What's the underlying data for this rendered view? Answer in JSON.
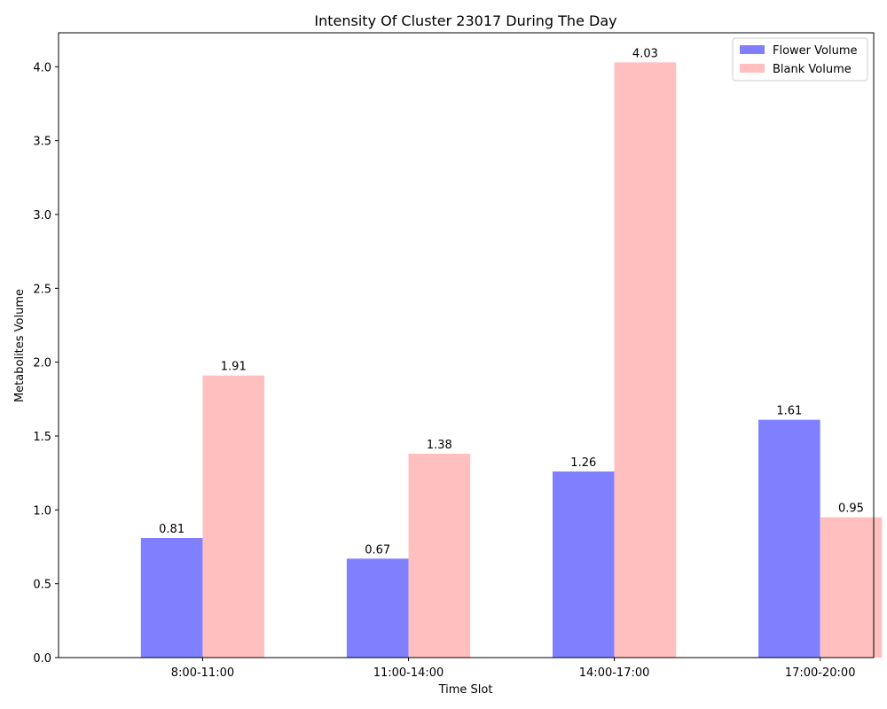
{
  "chart_data": {
    "type": "bar",
    "title": "Intensity Of Cluster 23017 During The Day",
    "xlabel": "Time Slot",
    "ylabel": "Metabolites Volume",
    "categories": [
      "8:00-11:00",
      "11:00-14:00",
      "14:00-17:00",
      "17:00-20:00"
    ],
    "series": [
      {
        "name": "Flower Volume",
        "values": [
          0.81,
          0.67,
          1.26,
          1.61
        ],
        "labels": [
          "0.81",
          "0.67",
          "1.26",
          "1.61"
        ],
        "color": "#8080ff"
      },
      {
        "name": "Blank Volume",
        "values": [
          1.91,
          1.38,
          4.03,
          0.95
        ],
        "labels": [
          "1.91",
          "1.38",
          "4.03",
          "0.95"
        ],
        "color": "#ffbfbf"
      }
    ],
    "ylim": [
      0,
      4.23
    ],
    "yticks": [
      "0.0",
      "0.5",
      "1.0",
      "1.5",
      "2.0",
      "2.5",
      "3.0",
      "3.5",
      "4.0"
    ],
    "grid": false,
    "legend_position": "top-right"
  }
}
